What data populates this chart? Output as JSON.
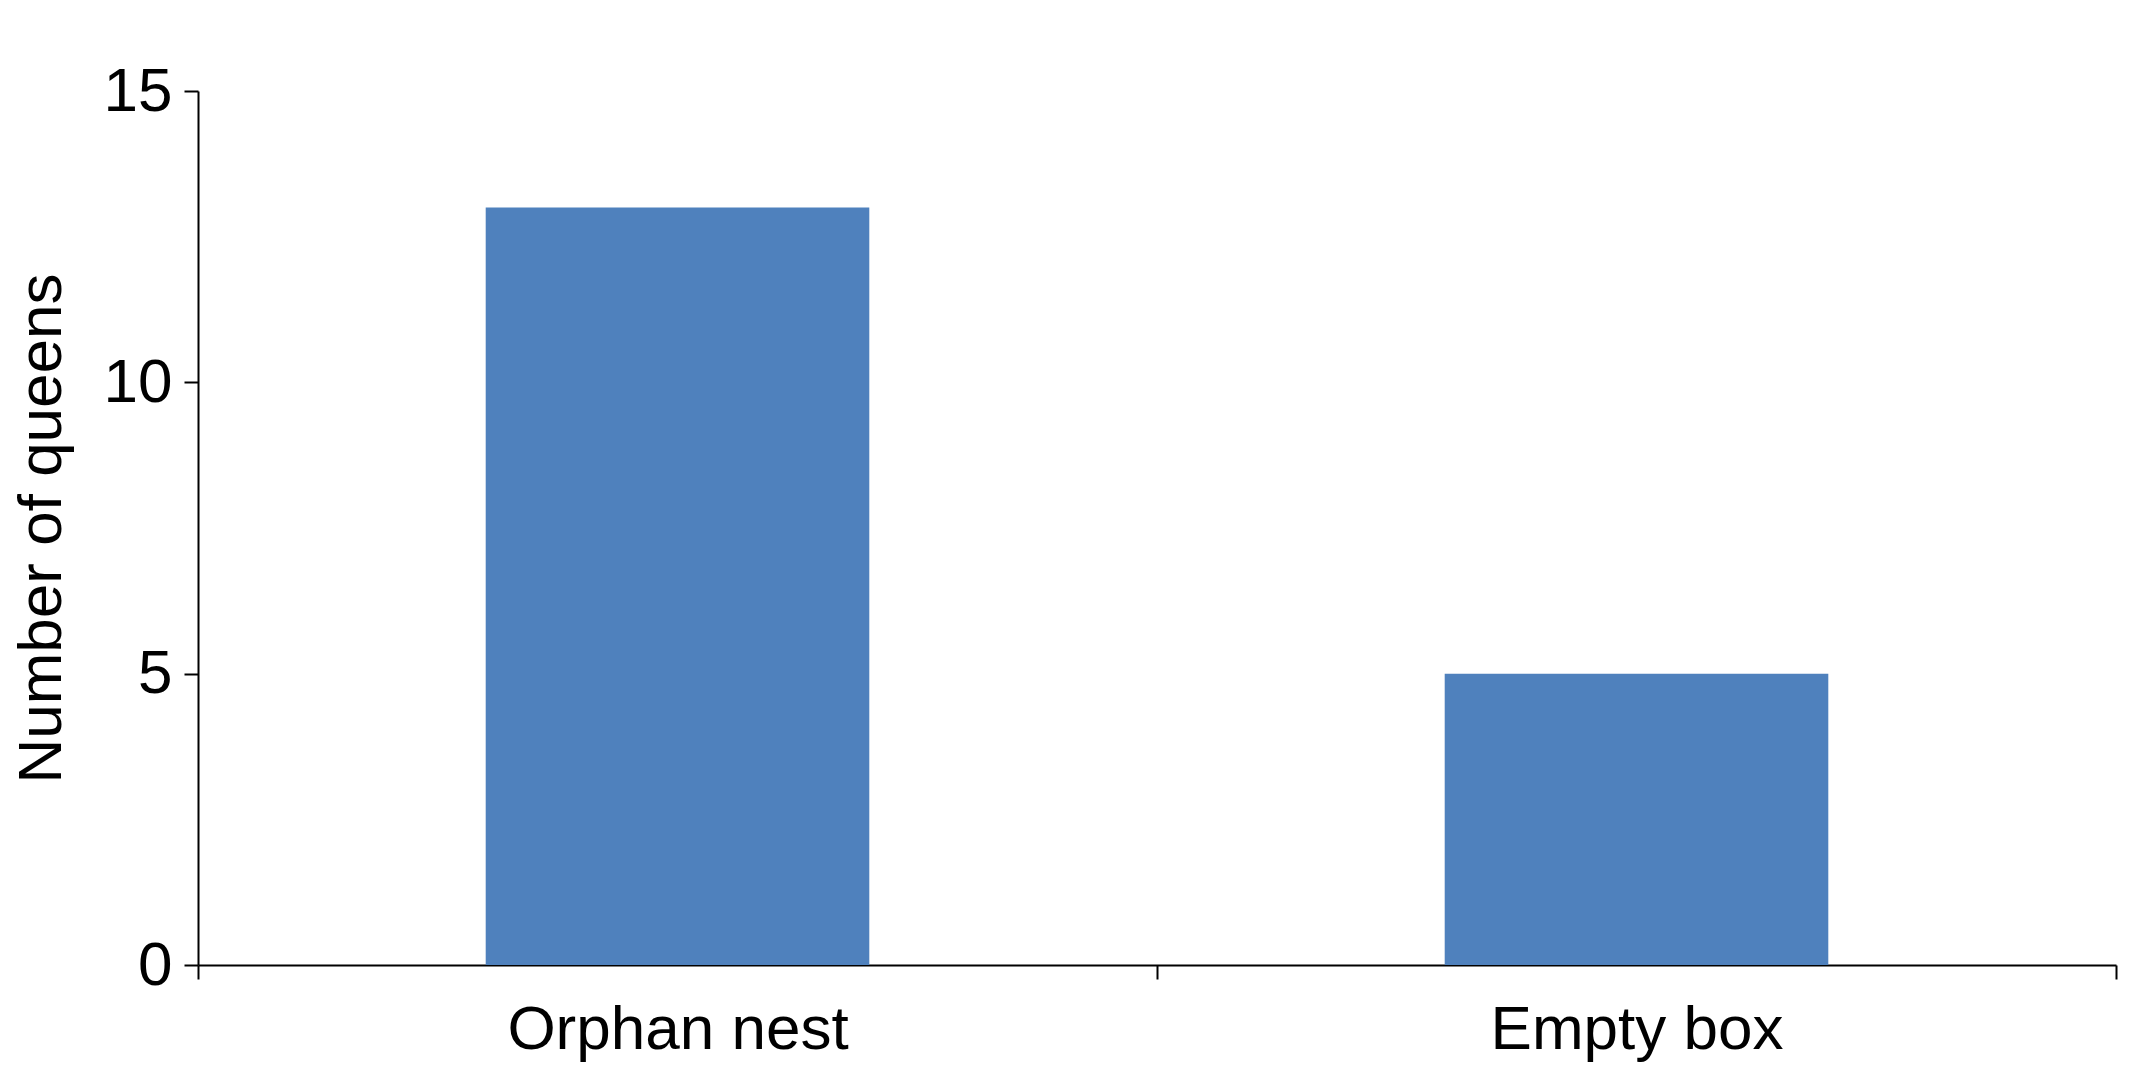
{
  "chart_data": {
    "type": "bar",
    "ylabel": "Number of queens",
    "categories": [
      "Orphan nest",
      "Empty box"
    ],
    "series": [
      {
        "color": "#4f81bd",
        "values": [
          13,
          5
        ]
      }
    ],
    "ylim": [
      0,
      15
    ],
    "yticks": [
      0,
      5,
      10,
      15
    ],
    "grid": false
  }
}
